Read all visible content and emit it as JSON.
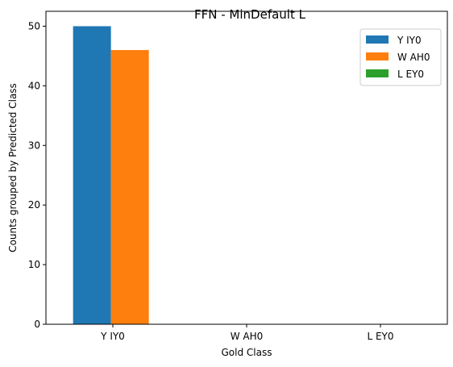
{
  "chart_data": {
    "type": "bar",
    "title": "FFN - MinDefault L",
    "xlabel": "Gold Class",
    "ylabel": "Counts grouped by Predicted Class",
    "categories": [
      "Y IY0",
      "W AH0",
      "L EY0"
    ],
    "series": [
      {
        "name": "Y IY0",
        "color": "#1f77b4",
        "values": [
          50,
          0,
          0
        ]
      },
      {
        "name": "W AH0",
        "color": "#ff7f0e",
        "values": [
          46,
          0,
          0
        ]
      },
      {
        "name": "L EY0",
        "color": "#2ca02c",
        "values": [
          0,
          0,
          0
        ]
      }
    ],
    "ylim": [
      0,
      52.5
    ],
    "yticks": [
      0,
      10,
      20,
      30,
      40,
      50
    ],
    "grid": false,
    "legend_position": "top-right"
  }
}
